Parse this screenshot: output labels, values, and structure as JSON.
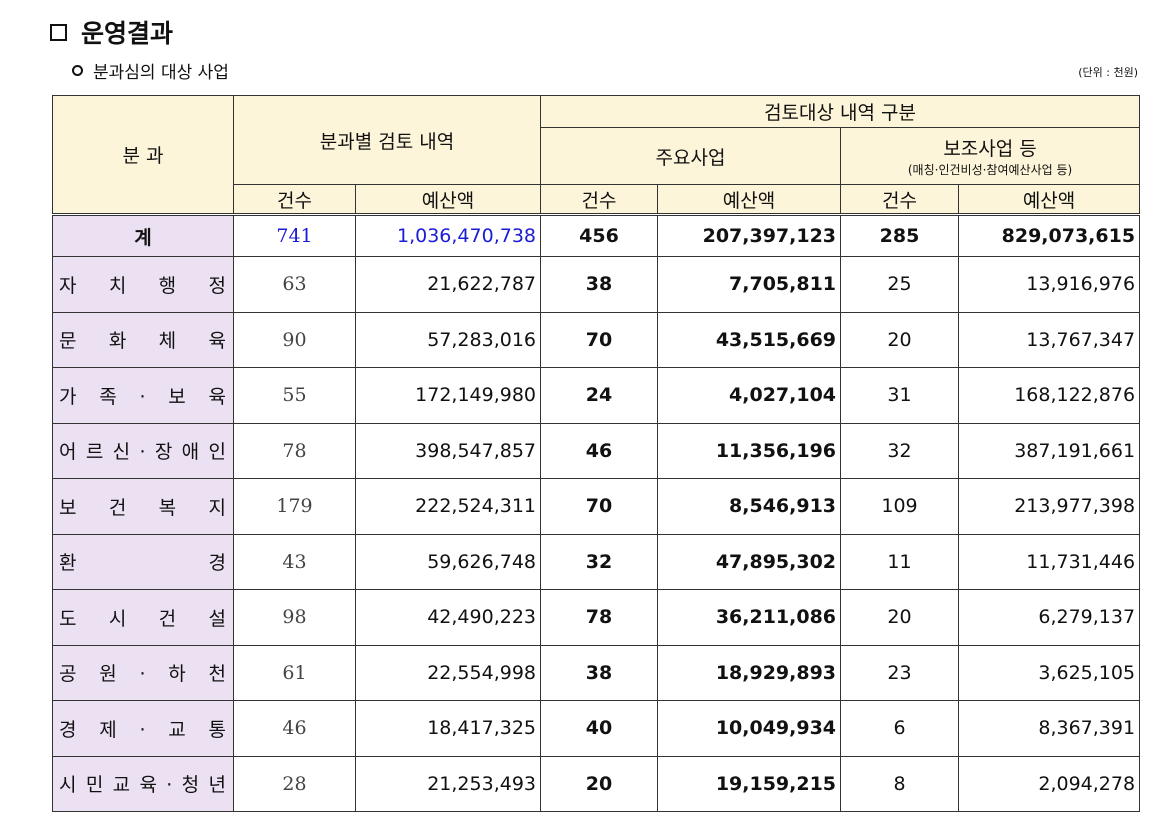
{
  "header": {
    "title": "운영결과",
    "subtitle": "분과심의 대상 사업",
    "unit": "(단위 : 천원)"
  },
  "table": {
    "division": "분 과",
    "review": "분과별 검토 내역",
    "target": "검토대상 내역 구분",
    "major": "주요사업",
    "support": "보조사업 등",
    "support_note": "(매칭·인건비성·참여예산사업 등)",
    "subheaders": [
      "건수",
      "예산액",
      "건수",
      "예산액",
      "건수",
      "예산액"
    ],
    "total": [
      "계",
      "741",
      "1,036,470,738",
      "456",
      "207,397,123",
      "285",
      "829,073,615"
    ],
    "rows": [
      [
        "자 치 행 정",
        "63",
        "21,622,787",
        "38",
        "7,705,811",
        "25",
        "13,916,976"
      ],
      [
        "문 화 체 육",
        "90",
        "57,283,016",
        "70",
        "43,515,669",
        "20",
        "13,767,347"
      ],
      [
        "가 족 · 보 육",
        "55",
        "172,149,980",
        "24",
        "4,027,104",
        "31",
        "168,122,876"
      ],
      [
        "어 르 신 · 장 애 인",
        "78",
        "398,547,857",
        "46",
        "11,356,196",
        "32",
        "387,191,661"
      ],
      [
        "보 건 복 지",
        "179",
        "222,524,311",
        "70",
        "8,546,913",
        "109",
        "213,977,398"
      ],
      [
        "환 경",
        "43",
        "59,626,748",
        "32",
        "47,895,302",
        "11",
        "11,731,446"
      ],
      [
        "도 시 건 설",
        "98",
        "42,490,223",
        "78",
        "36,211,086",
        "20",
        "6,279,137"
      ],
      [
        "공 원 · 하 천",
        "61",
        "22,554,998",
        "38",
        "18,929,893",
        "23",
        "3,625,105"
      ],
      [
        "경 제 · 교 통",
        "46",
        "18,417,325",
        "40",
        "10,049,934",
        "6",
        "8,367,391"
      ],
      [
        "시 민 교 육 · 청 년",
        "28",
        "21,253,493",
        "20",
        "19,159,215",
        "8",
        "2,094,278"
      ]
    ]
  }
}
